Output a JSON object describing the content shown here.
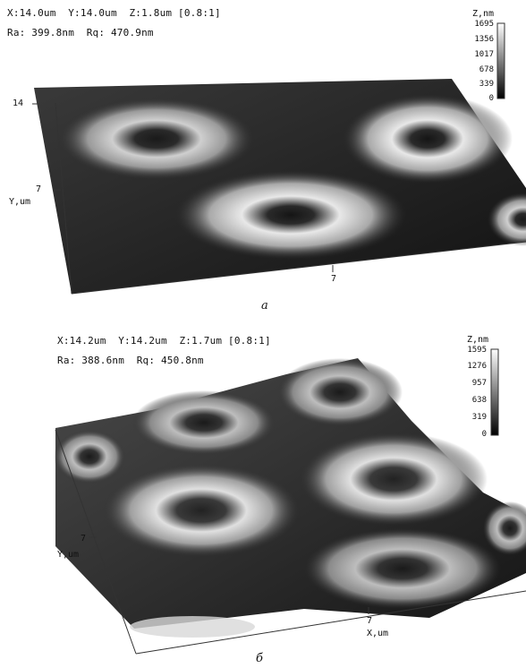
{
  "panel_a": {
    "info_line1": "X:14.0um  Y:14.0um  Z:1.8um [0.8:1]",
    "info_line2": "Ra: 399.8nm  Rq: 470.9nm",
    "colorbar_title": "Z,nm",
    "colorbar_ticks": [
      "1695",
      "1356",
      "1017",
      "678",
      "339",
      "0"
    ],
    "y_tick_top": "14",
    "y_tick_mid": "7",
    "y_axis_label": "Y,um",
    "x_tick_mid": "7",
    "caption": "a"
  },
  "panel_b": {
    "info_line1": "X:14.2um  Y:14.2um  Z:1.7um [0.8:1]",
    "info_line2": "Ra: 388.6nm  Rq: 450.8nm",
    "colorbar_title": "Z,nm",
    "colorbar_ticks": [
      "1595",
      "1276",
      "957",
      "638",
      "319",
      "0"
    ],
    "y_tick_mid": "7",
    "y_axis_label": "Y,um",
    "x_tick_mid": "7",
    "x_axis_label": "X,um",
    "caption": "б"
  }
}
